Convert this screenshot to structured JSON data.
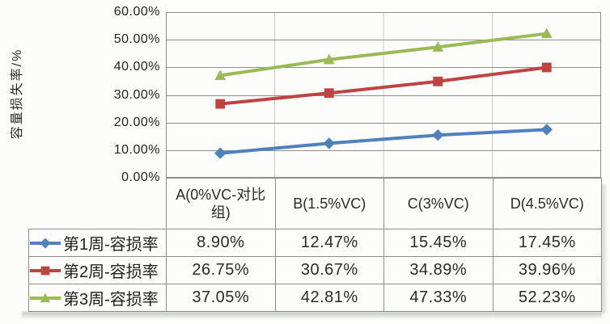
{
  "chart_data": {
    "type": "line",
    "title": "",
    "y_axis_title": "容量损失率/%",
    "xlabel": "",
    "ylabel": "容量损失率/%",
    "ylim": [
      0,
      60
    ],
    "y_ticks": [
      "60.00%",
      "50.00%",
      "40.00%",
      "30.00%",
      "20.00%",
      "10.00%",
      "0.00%"
    ],
    "grid": "horizontal-major-on",
    "legend_position": "data-table-left-column",
    "categories": [
      "A(0%VC-对比组)",
      "B(1.5%VC)",
      "C(3%VC)",
      "D(4.5%VC)"
    ],
    "series": [
      {
        "name": "第1周-容损率",
        "marker": "diamond",
        "color": "#4f81bd",
        "values": [
          8.9,
          12.47,
          15.45,
          17.45
        ],
        "display_values": [
          "8.90%",
          "12.47%",
          "15.45%",
          "17.45%"
        ]
      },
      {
        "name": "第2周-容损率",
        "marker": "square",
        "color": "#bf4340",
        "values": [
          26.75,
          30.67,
          34.89,
          39.96
        ],
        "display_values": [
          "26.75%",
          "30.67%",
          "34.89%",
          "39.96%"
        ]
      },
      {
        "name": "第3周-容损率",
        "marker": "triangle",
        "color": "#9aba55",
        "values": [
          37.05,
          42.81,
          47.33,
          52.23
        ],
        "display_values": [
          "37.05%",
          "42.81%",
          "47.33%",
          "52.23%"
        ]
      }
    ]
  },
  "colors": {
    "background": "#fcfcfa",
    "plot_border": "#8d8d8d",
    "gridline": "#8d8d8d",
    "vertical_gridline": "#cccccc",
    "text": "#262626"
  }
}
